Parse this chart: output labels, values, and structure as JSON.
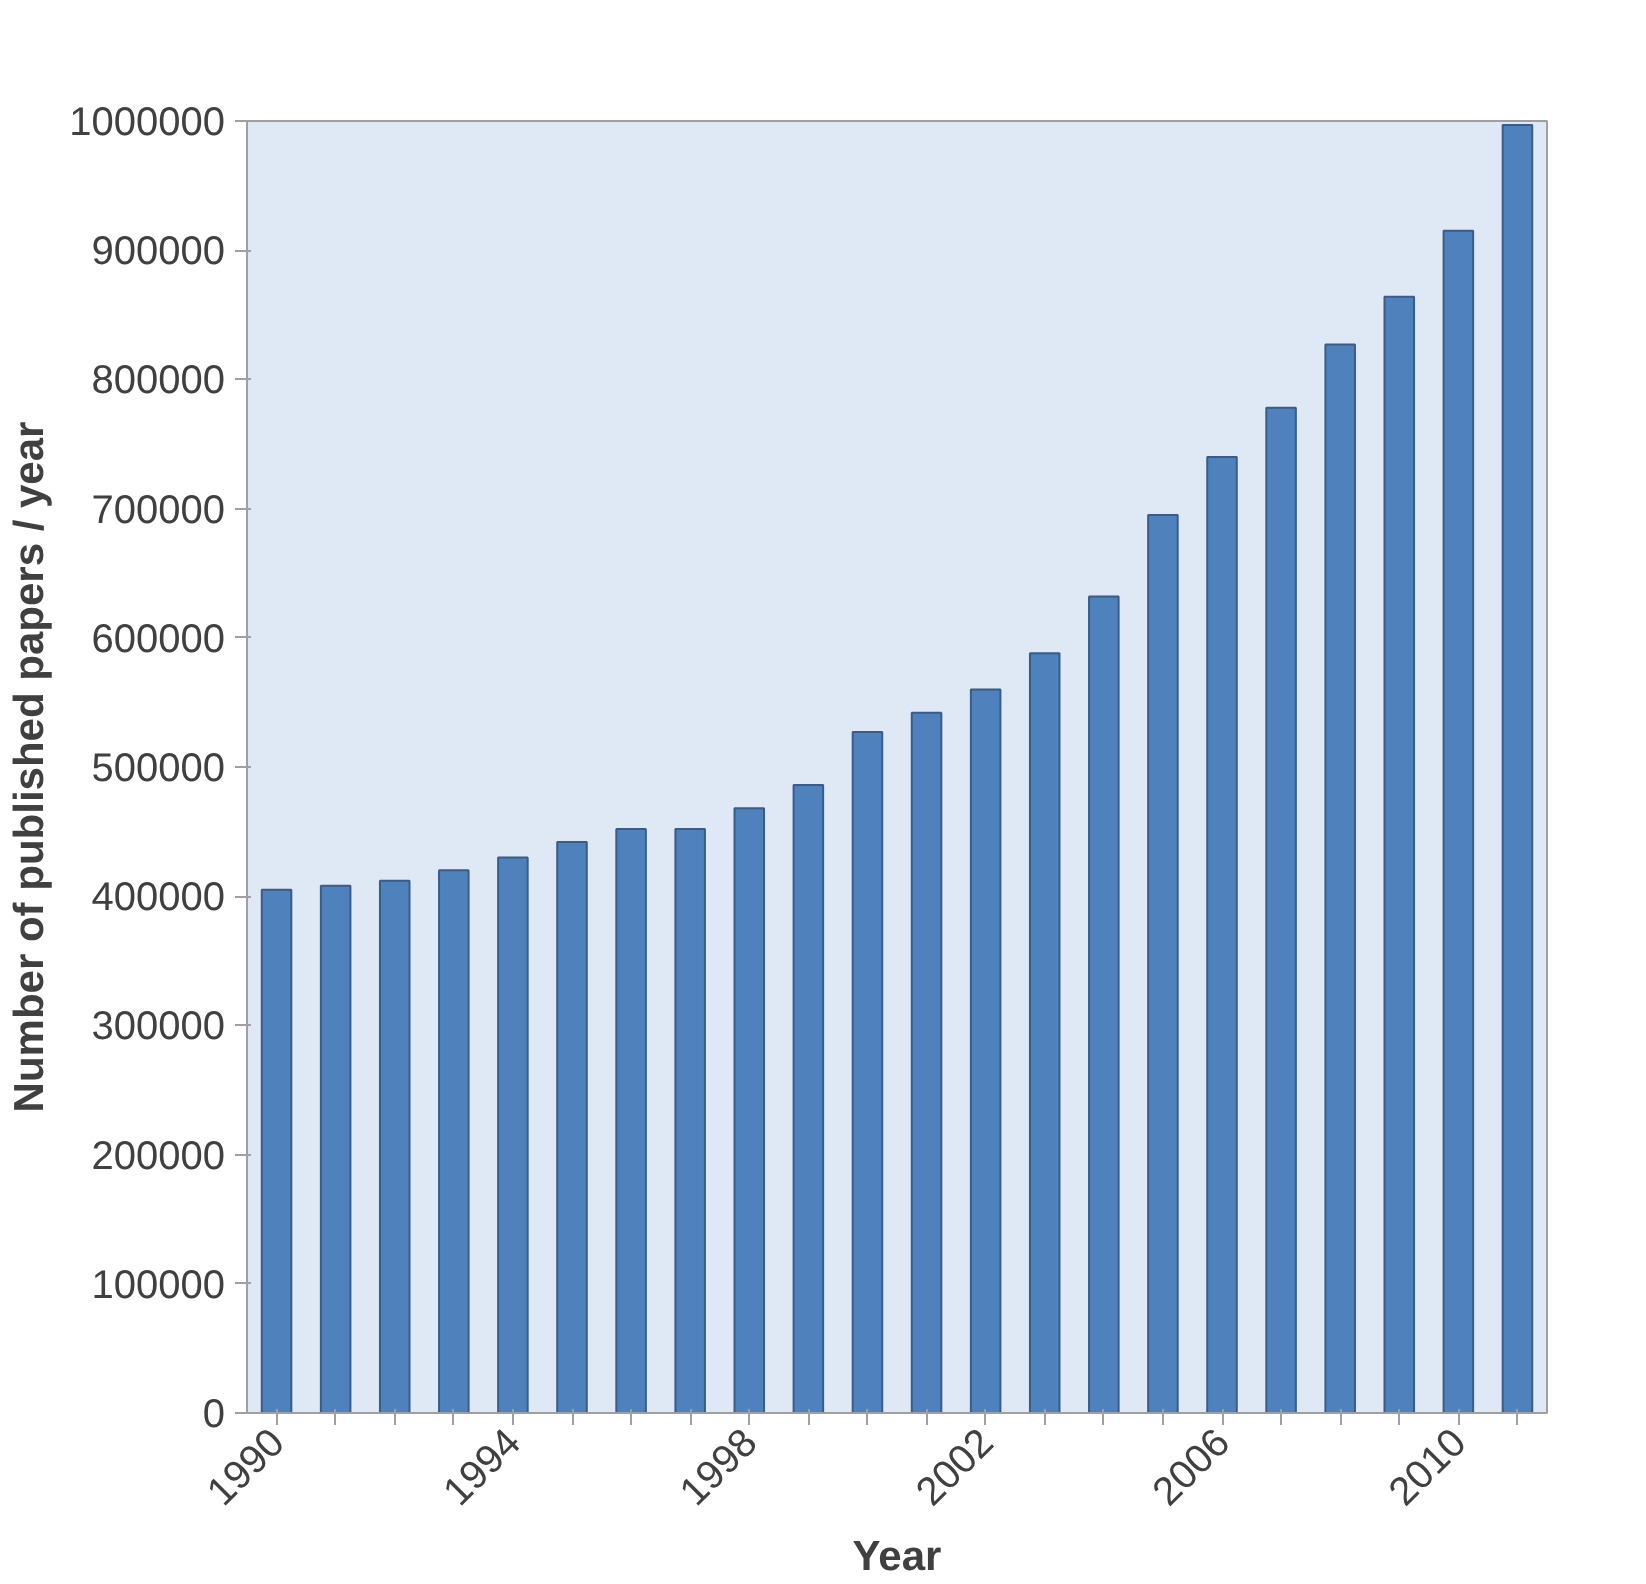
{
  "chart_data": {
    "type": "bar",
    "xlabel": "Year",
    "ylabel": "Number of published papers / year",
    "categories": [
      "1990",
      null,
      null,
      null,
      "1994",
      null,
      null,
      null,
      "1998",
      null,
      null,
      null,
      "2002",
      null,
      null,
      null,
      "2006",
      null,
      null,
      null,
      "2010",
      null
    ],
    "values": [
      405000,
      408000,
      412000,
      420000,
      430000,
      442000,
      452000,
      452000,
      468000,
      486000,
      527000,
      542000,
      560000,
      588000,
      632000,
      695000,
      740000,
      778000,
      827000,
      864000,
      915000,
      997000
    ],
    "color": "#4f81bd",
    "ylim": [
      0,
      1000000
    ],
    "yticks": [
      0,
      100000,
      200000,
      300000,
      400000,
      500000,
      600000,
      700000,
      800000,
      900000,
      1000000
    ],
    "grid": false
  }
}
